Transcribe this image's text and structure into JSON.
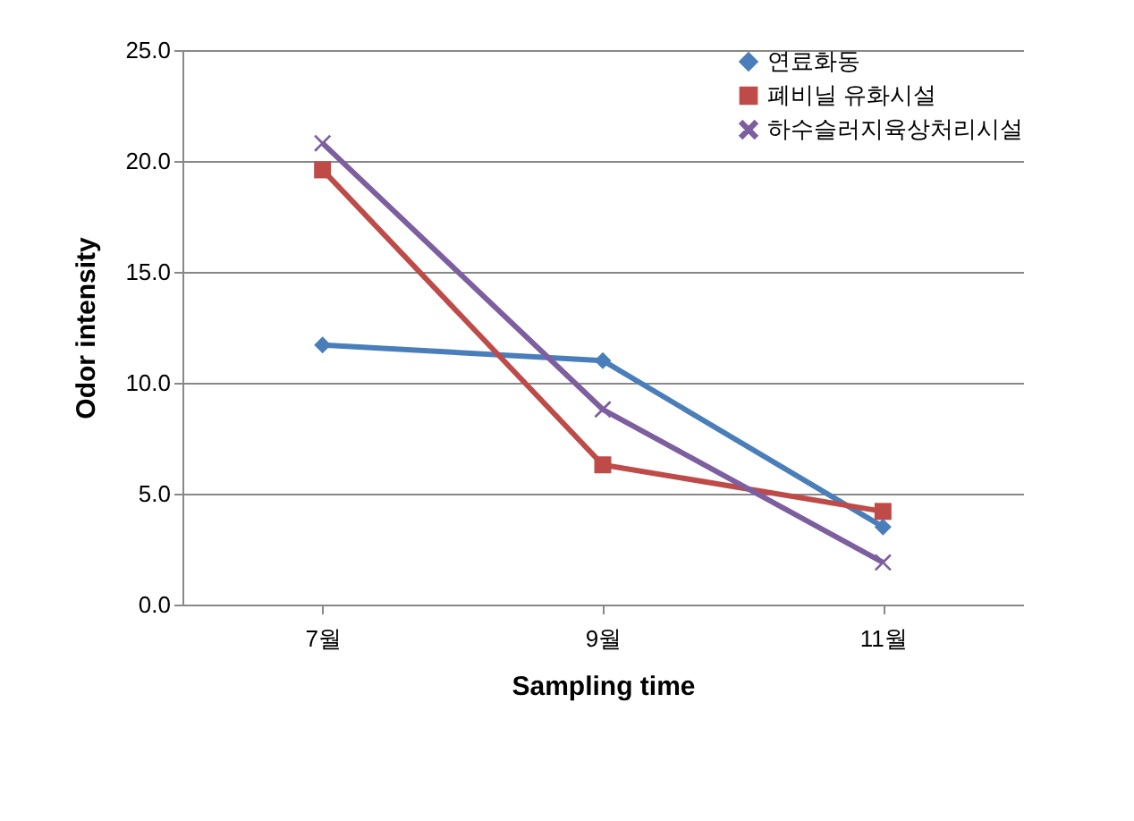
{
  "chart_data": {
    "type": "line",
    "xlabel": "Sampling time",
    "ylabel": "Odor  intensity",
    "categories": [
      "7월",
      "9월",
      "11월"
    ],
    "series": [
      {
        "name": "연료화동",
        "color": "#4a7ebb",
        "marker": "diamond",
        "values": [
          11.7,
          11.0,
          3.5
        ]
      },
      {
        "name": "폐비닐 유화시설",
        "color": "#be4b48",
        "marker": "square",
        "values": [
          19.6,
          6.3,
          4.2
        ]
      },
      {
        "name": "하수슬러지육상처리시설",
        "color": "#7d5fa0",
        "marker": "cross",
        "values": [
          20.8,
          8.8,
          1.9
        ]
      }
    ],
    "ylim": [
      0,
      25
    ],
    "yticks": [
      {
        "value": 0,
        "label": "0.0"
      },
      {
        "value": 5,
        "label": "5.0"
      },
      {
        "value": 10,
        "label": "10.0"
      },
      {
        "value": 15,
        "label": "15.0"
      },
      {
        "value": 20,
        "label": "20.0"
      },
      {
        "value": 25,
        "label": "25.0"
      }
    ],
    "grid": "y",
    "legend": "top right",
    "line_style": "solid"
  }
}
